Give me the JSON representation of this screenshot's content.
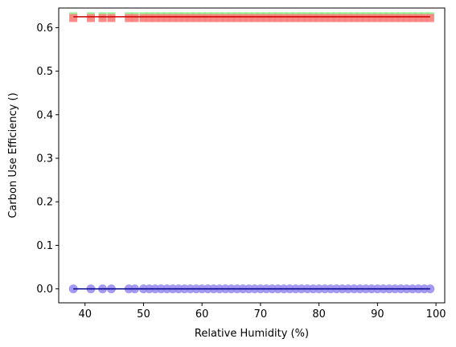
{
  "chart_data": {
    "type": "scatter",
    "title": "",
    "xlabel": "Relative Humidity (%)",
    "ylabel": "Carbon Use Efficiency ()",
    "xlim": [
      35.5,
      101.5
    ],
    "ylim": [
      -0.032,
      0.645
    ],
    "xticks": [
      40,
      50,
      60,
      70,
      80,
      90,
      100
    ],
    "yticks": [
      0.0,
      0.1,
      0.2,
      0.3,
      0.4,
      0.5,
      0.6
    ],
    "ytick_labels": [
      "0.0",
      "0.1",
      "0.2",
      "0.3",
      "0.4",
      "0.5",
      "0.6"
    ],
    "grid": false,
    "series": [
      {
        "marker": "square",
        "color": "#90ee90",
        "y": 0.626,
        "x": [
          38,
          41,
          43,
          44.5,
          47.5,
          48.5,
          50,
          51,
          52,
          53,
          54,
          55,
          56,
          57,
          58,
          59,
          60,
          61,
          62,
          63,
          64,
          65,
          66,
          67,
          68,
          69,
          70,
          71,
          72,
          73,
          74,
          75,
          76,
          77,
          78,
          79,
          80,
          81,
          82,
          83,
          84,
          85,
          86,
          87,
          88,
          89,
          90,
          91,
          92,
          93,
          94,
          95,
          96,
          97,
          98,
          99
        ]
      },
      {
        "marker": "square",
        "color": "#ff7f7f",
        "y": 0.622,
        "x": [
          38,
          41,
          43,
          44.5,
          47.5,
          48.5,
          50,
          51,
          52,
          53,
          54,
          55,
          56,
          57,
          58,
          59,
          60,
          61,
          62,
          63,
          64,
          65,
          66,
          67,
          68,
          69,
          70,
          71,
          72,
          73,
          74,
          75,
          76,
          77,
          78,
          79,
          80,
          81,
          82,
          83,
          84,
          85,
          86,
          87,
          88,
          89,
          90,
          91,
          92,
          93,
          94,
          95,
          96,
          97,
          98,
          99
        ]
      },
      {
        "marker": "circle",
        "color": "#9b8fef",
        "y": 0.0,
        "x": [
          38,
          41,
          43,
          44.5,
          47.5,
          48.5,
          50,
          51,
          52,
          53,
          54,
          55,
          56,
          57,
          58,
          59,
          60,
          61,
          62,
          63,
          64,
          65,
          66,
          67,
          68,
          69,
          70,
          71,
          72,
          73,
          74,
          75,
          76,
          77,
          78,
          79,
          80,
          81,
          82,
          83,
          84,
          85,
          86,
          87,
          88,
          89,
          90,
          91,
          92,
          93,
          94,
          95,
          96,
          97,
          98,
          99
        ]
      }
    ],
    "fit_lines": [
      {
        "color": "#cc0000",
        "x": [
          38,
          99
        ],
        "y": [
          0.625,
          0.625
        ]
      },
      {
        "color": "#00008b",
        "x": [
          38,
          99
        ],
        "y": [
          0.0,
          0.0
        ]
      }
    ]
  }
}
